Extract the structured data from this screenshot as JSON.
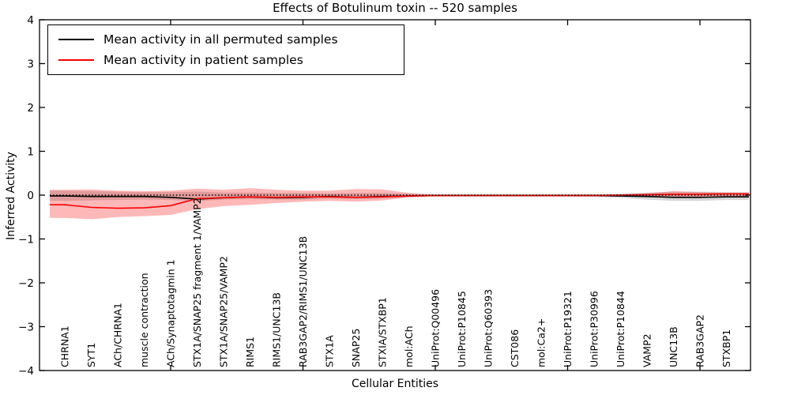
{
  "figure": {
    "title": "Effects of Botulinum toxin -- 520 samples",
    "xlabel": "Cellular Entities",
    "ylabel": "Inferred Activity"
  },
  "chart_data": {
    "type": "line",
    "title": "Effects of Botulinum toxin -- 520 samples",
    "xlabel": "Cellular Entities",
    "ylabel": "Inferred Activity",
    "ylim": [
      -4,
      4
    ],
    "yticks": [
      4,
      3,
      2,
      1,
      0,
      -1,
      -2,
      -3,
      -4
    ],
    "grid": false,
    "legend_position": "upper-left",
    "x_sparse_tick_indices": [
      4,
      9,
      14,
      19,
      24
    ],
    "categories": [
      "CHRNA1",
      "SYT1",
      "ACh/CHRNA1",
      "muscle contraction",
      "ACh/Synaptotagmin 1",
      "STX1A/SNAP25 fragment 1/VAMP2",
      "STX1A/SNAP25/VAMP2",
      "RIMS1",
      "RIMS1/UNC13B",
      "RAB3GAP2/RIMS1/UNC13B",
      "STX1A",
      "SNAP25",
      "STXIA/STXBP1",
      "mol:ACh",
      "UniProt:Q00496",
      "UniProt:P10845",
      "UniProt:Q60393",
      "CST086",
      "mol:Ca2+",
      "UniProt:P19321",
      "UniProt:P30996",
      "UniProt:P10844",
      "VAMP2",
      "UNC13B",
      "RAB3GAP2",
      "STXBP1"
    ],
    "series": [
      {
        "name": "Mean activity in all permuted samples",
        "color": "#000000",
        "style": "solid",
        "values": [
          -0.02,
          -0.03,
          -0.03,
          -0.03,
          -0.05,
          -0.09,
          -0.06,
          -0.04,
          -0.06,
          -0.05,
          -0.03,
          -0.05,
          -0.03,
          -0.02,
          -0.01,
          -0.01,
          -0.01,
          -0.01,
          -0.01,
          -0.01,
          -0.01,
          -0.02,
          -0.03,
          -0.05,
          -0.05,
          -0.04
        ]
      },
      {
        "name": "Mean activity in patient samples",
        "color": "#ff0000",
        "style": "solid",
        "values": [
          -0.22,
          -0.28,
          -0.3,
          -0.29,
          -0.24,
          -0.08,
          -0.06,
          -0.04,
          -0.05,
          -0.04,
          -0.04,
          -0.05,
          -0.04,
          -0.02,
          -0.01,
          -0.01,
          -0.01,
          -0.01,
          -0.01,
          -0.01,
          -0.01,
          0.0,
          0.01,
          0.02,
          0.02,
          0.03
        ]
      }
    ],
    "bands": [
      {
        "name": "permuted-samples-range",
        "color": "rgba(0,0,0,0.16)",
        "hi": [
          0.1,
          0.09,
          0.08,
          0.07,
          0.07,
          0.08,
          0.06,
          0.06,
          0.05,
          0.05,
          0.04,
          0.05,
          0.05,
          0.03,
          0.02,
          0.02,
          0.02,
          0.02,
          0.02,
          0.02,
          0.02,
          0.03,
          0.06,
          0.08,
          0.08,
          0.07
        ],
        "lo": [
          -0.13,
          -0.12,
          -0.11,
          -0.1,
          -0.11,
          -0.14,
          -0.1,
          -0.09,
          -0.1,
          -0.1,
          -0.08,
          -0.09,
          -0.08,
          -0.05,
          -0.03,
          -0.03,
          -0.03,
          -0.03,
          -0.03,
          -0.03,
          -0.04,
          -0.06,
          -0.1,
          -0.13,
          -0.13,
          -0.11
        ]
      },
      {
        "name": "patient-samples-range",
        "color": "rgba(255,0,0,0.28)",
        "hi": [
          0.12,
          0.13,
          0.1,
          0.09,
          0.1,
          0.15,
          0.12,
          0.16,
          0.12,
          0.1,
          0.1,
          0.14,
          0.13,
          0.05,
          0.01,
          0.01,
          0.01,
          0.01,
          0.01,
          0.01,
          0.01,
          0.02,
          0.04,
          0.09,
          0.07,
          0.05
        ],
        "lo": [
          -0.52,
          -0.55,
          -0.5,
          -0.48,
          -0.45,
          -0.32,
          -0.25,
          -0.22,
          -0.18,
          -0.15,
          -0.13,
          -0.15,
          -0.12,
          -0.05,
          -0.02,
          -0.02,
          -0.02,
          -0.02,
          -0.02,
          -0.02,
          -0.02,
          -0.02,
          -0.03,
          -0.05,
          -0.04,
          -0.03
        ]
      }
    ],
    "zero_line": {
      "y": 0,
      "style": "dotted",
      "color": "#000000"
    }
  },
  "legend": {
    "entries": [
      {
        "label": "Mean activity in all permuted samples",
        "color": "#000000"
      },
      {
        "label": "Mean activity in patient samples",
        "color": "#ff0000"
      }
    ]
  }
}
